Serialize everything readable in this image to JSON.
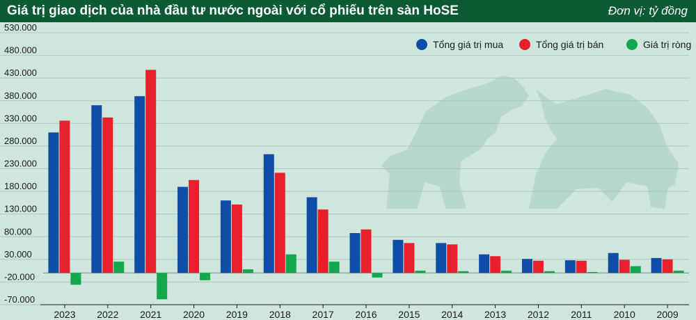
{
  "header": {
    "title": "Giá trị giao dịch của nhà đầu tư nước ngoài với cổ phiếu trên sàn HoSE",
    "unit": "Đơn vị: tỷ đồng"
  },
  "colors": {
    "header_bg": "#0a5b33",
    "background": "#cfe6dc",
    "buy": "#0f4ea8",
    "sell": "#e8202b",
    "net": "#14a84e",
    "decoration": "#b7d8ca"
  },
  "decoration": {
    "icon": "bear-bull-silhouette-icon"
  },
  "chart_data": {
    "type": "bar",
    "title": "Giá trị giao dịch của nhà đầu tư nước ngoài với cổ phiếu trên sàn HoSE",
    "unit": "Đơn vị: tỷ đồng",
    "categories": [
      "2023",
      "2022",
      "2021",
      "2020",
      "2019",
      "2018",
      "2017",
      "2016",
      "2015",
      "2014",
      "2013",
      "2012",
      "2011",
      "2010",
      "2009"
    ],
    "series": [
      {
        "name": "Tổng giá trị mua",
        "color": "#0f4ea8",
        "values": [
          310000,
          370000,
          390000,
          190000,
          160000,
          262000,
          167000,
          88000,
          73000,
          66000,
          41000,
          31000,
          28000,
          44000,
          33000
        ]
      },
      {
        "name": "Tổng giá trị bán",
        "color": "#e8202b",
        "values": [
          336000,
          343000,
          448000,
          205000,
          151000,
          221000,
          140000,
          96000,
          66000,
          63000,
          37000,
          27000,
          27000,
          29000,
          30000
        ]
      },
      {
        "name": "Giá trị ròng",
        "color": "#14a84e",
        "values": [
          -26000,
          25000,
          -58000,
          -16000,
          8000,
          41000,
          25000,
          -10000,
          5000,
          4000,
          5000,
          4000,
          2000,
          15000,
          5000
        ]
      }
    ],
    "yticks": [
      "530.000",
      "480.000",
      "430.000",
      "380.000",
      "330.000",
      "280.000",
      "230.000",
      "180.000",
      "130.000",
      "80.000",
      "30.000",
      "-20.000",
      "-70.000"
    ],
    "ytick_values": [
      530000,
      480000,
      430000,
      380000,
      330000,
      280000,
      230000,
      180000,
      130000,
      80000,
      30000,
      -20000,
      -70000
    ],
    "ylim": [
      -70000,
      530000
    ],
    "grid": true,
    "legend_position": "top-right"
  }
}
